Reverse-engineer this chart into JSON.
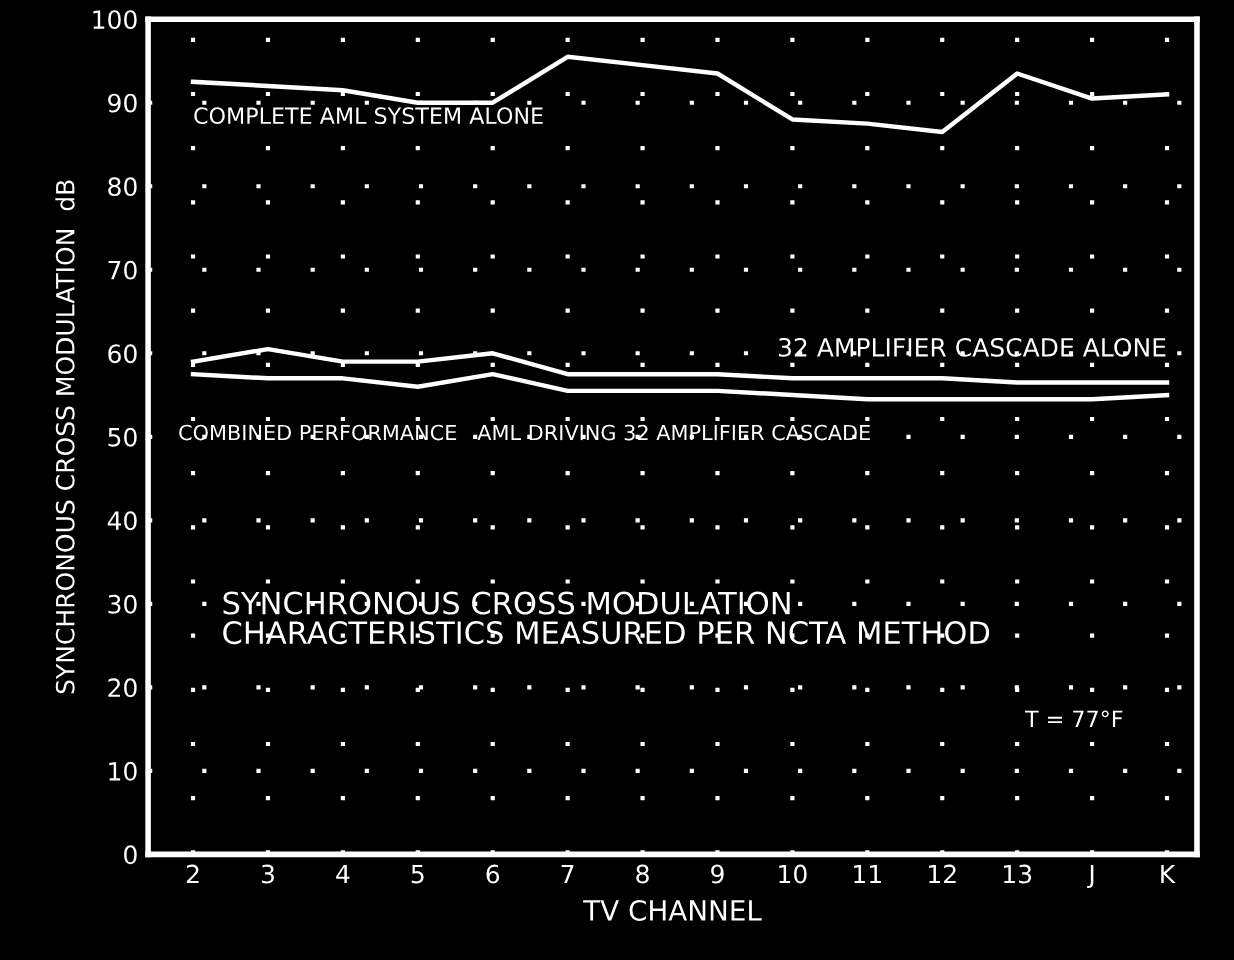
{
  "chart_data": {
    "type": "line",
    "xlabel": "TV CHANNEL",
    "ylabel": "SYNCHRONOUS CROSS MODULATION  dB",
    "categories": [
      "2",
      "3",
      "4",
      "5",
      "6",
      "7",
      "8",
      "9",
      "10",
      "11",
      "12",
      "13",
      "J",
      "K"
    ],
    "series": [
      {
        "name": "COMPLETE AML SYSTEM ALONE",
        "color": "#ffffff",
        "values": [
          92.5,
          92,
          91.5,
          90,
          90,
          95.5,
          94.5,
          93.5,
          88,
          87.5,
          86.5,
          93.5,
          90.5,
          91
        ]
      },
      {
        "name": "32 AMPLIFIER CASCADE ALONE",
        "color": "#ffffff",
        "values": [
          59,
          60.5,
          59,
          59,
          60,
          57.5,
          57.5,
          57.5,
          57,
          57,
          57,
          56.5,
          56.5,
          56.5
        ]
      },
      {
        "name": "COMBINED PERFORMANCE   AML DRIVING 32 AMPLIFIER CASCADE",
        "color": "#ffffff",
        "values": [
          57.5,
          57,
          57,
          56,
          57.5,
          55.5,
          55.5,
          55.5,
          55,
          54.5,
          54.5,
          54.5,
          54.5,
          55
        ]
      }
    ],
    "ylim": [
      0,
      100
    ],
    "yticks": [
      0,
      10,
      20,
      30,
      40,
      50,
      60,
      70,
      80,
      90,
      100
    ],
    "grid": true,
    "line_style": "solid",
    "marker": "none",
    "annotations": [
      "SYNCHRONOUS CROSS MODULATION\nCHARACTERISTICS MEASURED PER NCTA METHOD",
      "T = 77°F"
    ]
  }
}
